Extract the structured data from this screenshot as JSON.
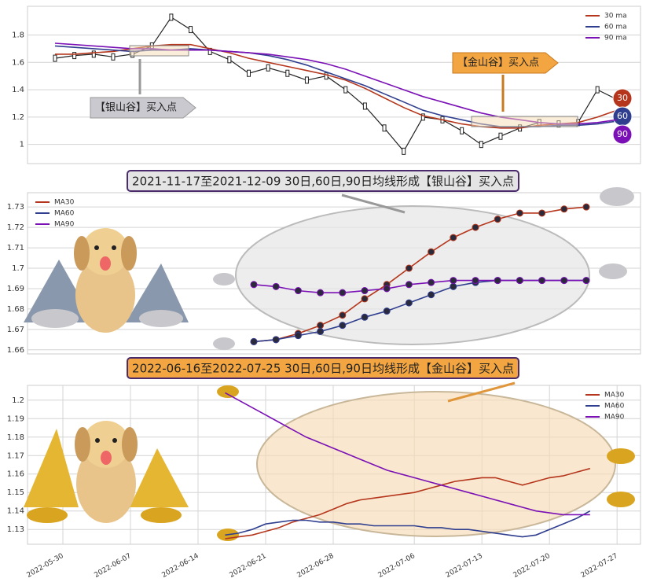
{
  "chart_data": [
    {
      "type": "line",
      "values": [
        1.63,
        1.65,
        1.66,
        1.64,
        1.66,
        1.72,
        1.93,
        1.84,
        1.68,
        1.62,
        1.52,
        1.56,
        1.52,
        1.47,
        1.5,
        1.4,
        1.28,
        1.12,
        0.95,
        1.2,
        1.18,
        1.1,
        1.0,
        1.06,
        1.12,
        1.16,
        1.15,
        1.16,
        1.4,
        1.33
      ],
      "series": [
        {
          "name": "30 ma",
          "color": "#b5361c",
          "values": [
            1.66,
            1.66,
            1.67,
            1.68,
            1.7,
            1.72,
            1.73,
            1.73,
            1.7,
            1.67,
            1.63,
            1.6,
            1.57,
            1.54,
            1.51,
            1.47,
            1.41,
            1.34,
            1.27,
            1.21,
            1.18,
            1.15,
            1.13,
            1.12,
            1.12,
            1.14,
            1.15,
            1.16,
            1.2,
            1.25
          ]
        },
        {
          "name": "60 ma",
          "color": "#2f3e8f",
          "values": [
            1.72,
            1.71,
            1.7,
            1.69,
            1.68,
            1.69,
            1.69,
            1.7,
            1.69,
            1.68,
            1.67,
            1.65,
            1.62,
            1.58,
            1.53,
            1.48,
            1.43,
            1.37,
            1.31,
            1.25,
            1.21,
            1.18,
            1.15,
            1.13,
            1.13,
            1.13,
            1.14,
            1.14,
            1.15,
            1.17
          ]
        },
        {
          "name": "90 ma",
          "color": "#7a10b5",
          "values": [
            1.74,
            1.73,
            1.72,
            1.71,
            1.7,
            1.7,
            1.69,
            1.69,
            1.69,
            1.68,
            1.67,
            1.66,
            1.64,
            1.62,
            1.59,
            1.55,
            1.5,
            1.45,
            1.4,
            1.35,
            1.31,
            1.27,
            1.23,
            1.2,
            1.18,
            1.16,
            1.15,
            1.15,
            1.16,
            1.18
          ]
        }
      ],
      "end_labels": [
        "30",
        "60",
        "90"
      ],
      "annotations": [
        "【银山谷】买入点",
        "【金山谷】买入点"
      ],
      "ylim": [
        0.86,
        2.01
      ],
      "yticks": [
        1.0,
        1.2,
        1.4,
        1.6,
        1.8
      ],
      "grid": true,
      "legend": "upper right"
    },
    {
      "type": "line",
      "title": "2021-11-17至2021-12-09 30日,60日,90日均线形成【银山谷】买入点",
      "series": [
        {
          "name": "MA30",
          "color": "#b5361c",
          "values": [
            1.664,
            1.665,
            1.668,
            1.672,
            1.677,
            1.685,
            1.692,
            1.7,
            1.708,
            1.715,
            1.72,
            1.724,
            1.727,
            1.727,
            1.729,
            1.73
          ]
        },
        {
          "name": "MA60",
          "color": "#2f3e8f",
          "values": [
            1.664,
            1.665,
            1.667,
            1.669,
            1.672,
            1.676,
            1.679,
            1.683,
            1.687,
            1.691,
            1.693,
            1.694,
            1.694,
            1.694,
            1.694,
            1.694
          ]
        },
        {
          "name": "MA90",
          "color": "#7a10b5",
          "values": [
            1.692,
            1.691,
            1.689,
            1.688,
            1.688,
            1.689,
            1.69,
            1.692,
            1.693,
            1.694,
            1.694,
            1.694,
            1.694,
            1.694,
            1.694,
            1.694
          ]
        }
      ],
      "markers": true,
      "ylim": [
        1.658,
        1.737
      ],
      "yticks": [
        1.66,
        1.67,
        1.68,
        1.69,
        1.7,
        1.71,
        1.72,
        1.73
      ],
      "grid": true,
      "legend": "upper left"
    },
    {
      "type": "line",
      "title": "2022-06-16至2022-07-25 30日,60日,90日均线形成【金山谷】买入点",
      "categories": [
        "2022-05-30",
        null,
        null,
        null,
        null,
        "2022-06-07",
        null,
        null,
        null,
        null,
        "2022-06-14",
        null,
        null,
        null,
        null,
        "2022-06-21",
        null,
        null,
        null,
        null,
        "2022-06-28",
        null,
        null,
        null,
        null,
        null,
        "2022-07-06",
        null,
        null,
        null,
        null,
        "2022-07-13",
        null,
        null,
        null,
        null,
        "2022-07-20",
        null,
        null,
        null,
        null,
        "2022-07-27"
      ],
      "series": [
        {
          "name": "MA30",
          "color": "#b5361c",
          "values": [
            null,
            null,
            null,
            null,
            null,
            null,
            null,
            null,
            null,
            null,
            null,
            null,
            1.125,
            1.126,
            1.127,
            1.129,
            1.131,
            1.134,
            1.136,
            1.138,
            1.141,
            1.144,
            1.146,
            1.147,
            1.148,
            1.149,
            1.15,
            1.152,
            1.154,
            1.156,
            1.157,
            1.158,
            1.158,
            1.156,
            1.154,
            1.156,
            1.158,
            1.159,
            1.161,
            1.163,
            null,
            null
          ]
        },
        {
          "name": "MA60",
          "color": "#2f3e8f",
          "values": [
            null,
            null,
            null,
            null,
            null,
            null,
            null,
            null,
            null,
            null,
            null,
            null,
            1.127,
            1.128,
            1.13,
            1.133,
            1.134,
            1.135,
            1.135,
            1.134,
            1.134,
            1.133,
            1.133,
            1.132,
            1.132,
            1.132,
            1.132,
            1.131,
            1.131,
            1.13,
            1.13,
            1.129,
            1.128,
            1.127,
            1.126,
            1.127,
            1.13,
            1.133,
            1.136,
            1.14,
            null,
            null
          ]
        },
        {
          "name": "MA90",
          "color": "#7a10b5",
          "values": [
            null,
            null,
            null,
            null,
            null,
            null,
            null,
            null,
            null,
            null,
            null,
            null,
            1.204,
            1.2,
            1.196,
            1.192,
            1.188,
            1.184,
            1.18,
            1.177,
            1.174,
            1.171,
            1.168,
            1.165,
            1.162,
            1.16,
            1.158,
            1.156,
            1.154,
            1.152,
            1.15,
            1.148,
            1.146,
            1.144,
            1.142,
            1.14,
            1.139,
            1.138,
            1.138,
            1.138,
            null,
            null
          ]
        }
      ],
      "ylim": [
        1.122,
        1.208
      ],
      "yticks": [
        1.13,
        1.14,
        1.15,
        1.16,
        1.17,
        1.18,
        1.19,
        1.2
      ],
      "grid": true,
      "legend": "upper right"
    }
  ]
}
